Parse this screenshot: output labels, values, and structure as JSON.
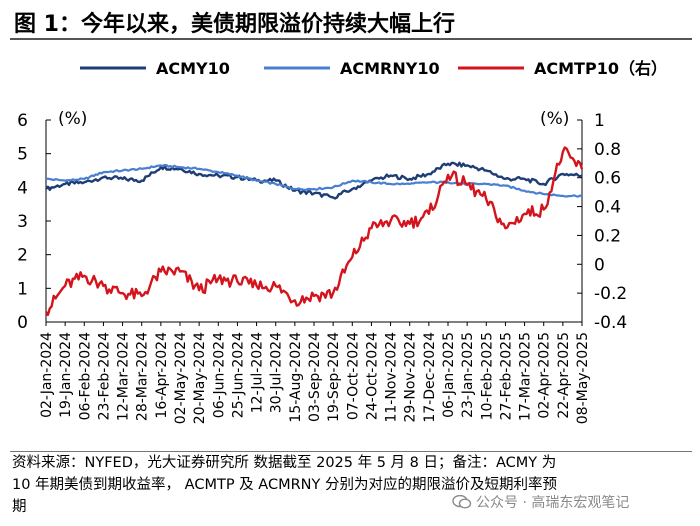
{
  "header": {
    "title": "图 1：今年以来，美债期限溢价持续大幅上行"
  },
  "footnote": {
    "line1": "资料来源：NYFED，光大证券研究所  数据截至 2025 年 5 月 8 日；备注：ACMY 为",
    "line2": "10 年期美债到期收益率， ACMTP 及 ACMRNY 分别为对应的期限溢价及短期利率预",
    "line3": "期"
  },
  "watermark": {
    "text": "公众号 · 高瑞东宏观笔记",
    "icon": "wechat-icon"
  },
  "colors": {
    "ACMY10": "#1f3d75",
    "ACMRNY10": "#4a7fd0",
    "ACMTP10": "#d4141c"
  },
  "chart_data": {
    "type": "line",
    "legend_position": "top",
    "left_axis": {
      "unit": "(%)",
      "ylim": [
        0,
        6
      ],
      "ticks": [
        "0",
        "1",
        "2",
        "3",
        "4",
        "5",
        "6"
      ]
    },
    "right_axis": {
      "unit": "(%)",
      "ylim": [
        -0.4,
        1.0
      ],
      "ticks": [
        "-0.4",
        "-0.2",
        "0",
        "0.2",
        "0.4",
        "0.6",
        "0.8",
        "1"
      ]
    },
    "x_ticks": [
      "02-Jan-2024",
      "19-Jan-2024",
      "06-Feb-2024",
      "23-Feb-2024",
      "12-Mar-2024",
      "28-Mar-2024",
      "16-Apr-2024",
      "02-May-2024",
      "20-May-2024",
      "06-Jun-2024",
      "25-Jun-2024",
      "12-Jul-2024",
      "30-Jul-2024",
      "15-Aug-2024",
      "03-Sep-2024",
      "19-Sep-2024",
      "07-Oct-2024",
      "24-Oct-2024",
      "11-Nov-2024",
      "29-Nov-2024",
      "17-Dec-2024",
      "06-Jan-2025",
      "23-Jan-2025",
      "10-Feb-2025",
      "27-Feb-2025",
      "17-Mar-2025",
      "02-Apr-2025",
      "22-Apr-2025",
      "08-May-2025"
    ],
    "series": [
      {
        "name": "ACMY10",
        "axis": "left",
        "values": [
          3.95,
          4.1,
          4.15,
          4.3,
          4.25,
          4.2,
          4.6,
          4.55,
          4.4,
          4.35,
          4.3,
          4.2,
          4.2,
          3.9,
          3.82,
          3.7,
          3.95,
          4.2,
          4.35,
          4.25,
          4.4,
          4.7,
          4.65,
          4.5,
          4.25,
          4.25,
          4.1,
          4.4,
          4.35
        ]
      },
      {
        "name": "ACMRNY10",
        "axis": "left",
        "values": [
          4.25,
          4.2,
          4.25,
          4.45,
          4.5,
          4.55,
          4.65,
          4.6,
          4.55,
          4.45,
          4.35,
          4.2,
          4.1,
          3.95,
          3.95,
          4.0,
          4.2,
          4.15,
          4.1,
          4.1,
          4.15,
          4.15,
          4.1,
          4.1,
          4.05,
          3.9,
          3.8,
          3.75,
          3.75
        ]
      },
      {
        "name": "ACMTP10",
        "axis": "right",
        "values": [
          -0.33,
          -0.15,
          -0.08,
          -0.15,
          -0.2,
          -0.22,
          -0.05,
          -0.05,
          -0.18,
          -0.1,
          -0.12,
          -0.15,
          -0.15,
          -0.25,
          -0.22,
          -0.2,
          0.05,
          0.25,
          0.3,
          0.28,
          0.35,
          0.62,
          0.55,
          0.45,
          0.25,
          0.35,
          0.38,
          0.78,
          0.66
        ]
      }
    ]
  }
}
